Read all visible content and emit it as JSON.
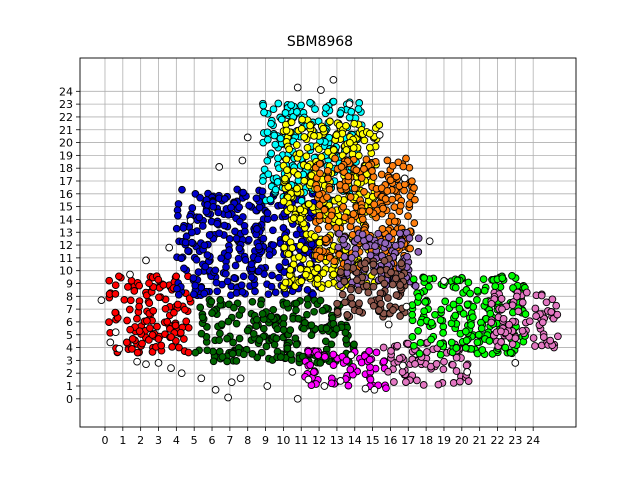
{
  "chart_data": {
    "type": "scatter",
    "title": "SBM8968",
    "xlabel": "",
    "ylabel": "",
    "xlim": [
      -1.4,
      26.4
    ],
    "ylim": [
      -2.2,
      26.6
    ],
    "x_ticks": [
      0,
      1,
      2,
      3,
      4,
      5,
      6,
      7,
      8,
      9,
      10,
      11,
      12,
      13,
      14,
      15,
      16,
      17,
      18,
      19,
      20,
      21,
      22,
      23,
      24
    ],
    "y_ticks": [
      0,
      1,
      2,
      3,
      4,
      5,
      6,
      7,
      8,
      9,
      10,
      11,
      12,
      13,
      14,
      15,
      16,
      17,
      18,
      19,
      20,
      21,
      22,
      23,
      24
    ],
    "grid": true,
    "marker": "circle",
    "marker_edge_color": "#000000",
    "clusters": [
      {
        "color": "#ff0000",
        "x_range": [
          0.2,
          4.8
        ],
        "y_range": [
          3.6,
          9.6
        ]
      },
      {
        "color": "#0000cc",
        "x_range": [
          4.0,
          12.0
        ],
        "y_range": [
          8.0,
          16.4
        ]
      },
      {
        "color": "#006400",
        "x_range": [
          5.0,
          14.0
        ],
        "y_range": [
          2.8,
          7.8
        ]
      },
      {
        "color": "#00ffff",
        "x_range": [
          8.8,
          14.4
        ],
        "y_range": [
          15.4,
          23.2
        ]
      },
      {
        "color": "#ffff00",
        "x_range": [
          10.0,
          15.4
        ],
        "y_range": [
          8.6,
          21.8
        ]
      },
      {
        "color": "#ff7f0e",
        "x_range": [
          11.8,
          17.4
        ],
        "y_range": [
          10.0,
          18.8
        ]
      },
      {
        "color": "#9467bd",
        "x_range": [
          13.0,
          17.6
        ],
        "y_range": [
          8.8,
          13.0
        ]
      },
      {
        "color": "#8c564b",
        "x_range": [
          13.0,
          16.8
        ],
        "y_range": [
          6.4,
          11.0
        ]
      },
      {
        "color": "#ff00ff",
        "x_range": [
          11.2,
          15.8
        ],
        "y_range": [
          0.8,
          3.8
        ]
      },
      {
        "color": "#e377c2",
        "x_range": [
          15.6,
          20.4
        ],
        "y_range": [
          1.0,
          4.4
        ]
      },
      {
        "color": "#00ff00",
        "x_range": [
          17.2,
          23.6
        ],
        "y_range": [
          3.4,
          9.6
        ]
      },
      {
        "color": "#e377c2",
        "x_range": [
          21.6,
          25.4
        ],
        "y_range": [
          4.0,
          8.4
        ]
      }
    ],
    "outlier_color": "#ffffff",
    "outliers": [
      [
        -0.2,
        7.7
      ],
      [
        0.6,
        5.2
      ],
      [
        0.8,
        3.9
      ],
      [
        1.8,
        2.9
      ],
      [
        2.3,
        2.7
      ],
      [
        3.0,
        2.8
      ],
      [
        3.7,
        2.4
      ],
      [
        4.3,
        2.0
      ],
      [
        5.4,
        1.6
      ],
      [
        6.2,
        0.7
      ],
      [
        6.9,
        0.1
      ],
      [
        7.6,
        1.6
      ],
      [
        9.1,
        1.0
      ],
      [
        10.8,
        0.0
      ],
      [
        11.4,
        1.5
      ],
      [
        12.3,
        1.0
      ],
      [
        13.2,
        1.4
      ],
      [
        14.6,
        0.8
      ],
      [
        15.1,
        0.7
      ],
      [
        16.9,
        7.2
      ],
      [
        18.2,
        12.3
      ],
      [
        19.0,
        9.2
      ],
      [
        20.3,
        2.1
      ],
      [
        23.0,
        2.8
      ],
      [
        6.4,
        18.1
      ],
      [
        7.7,
        18.6
      ],
      [
        8.0,
        20.4
      ],
      [
        10.8,
        24.3
      ],
      [
        12.1,
        24.1
      ],
      [
        12.8,
        24.9
      ],
      [
        13.7,
        23.0
      ],
      [
        15.4,
        20.6
      ],
      [
        16.8,
        17.2
      ],
      [
        3.6,
        11.8
      ],
      [
        2.3,
        10.8
      ],
      [
        1.4,
        9.7
      ],
      [
        4.8,
        13.9
      ],
      [
        0.3,
        4.4
      ],
      [
        7.1,
        1.3
      ],
      [
        13.8,
        3.4
      ],
      [
        15.9,
        5.8
      ],
      [
        16.7,
        2.6
      ],
      [
        10.5,
        2.1
      ]
    ]
  }
}
